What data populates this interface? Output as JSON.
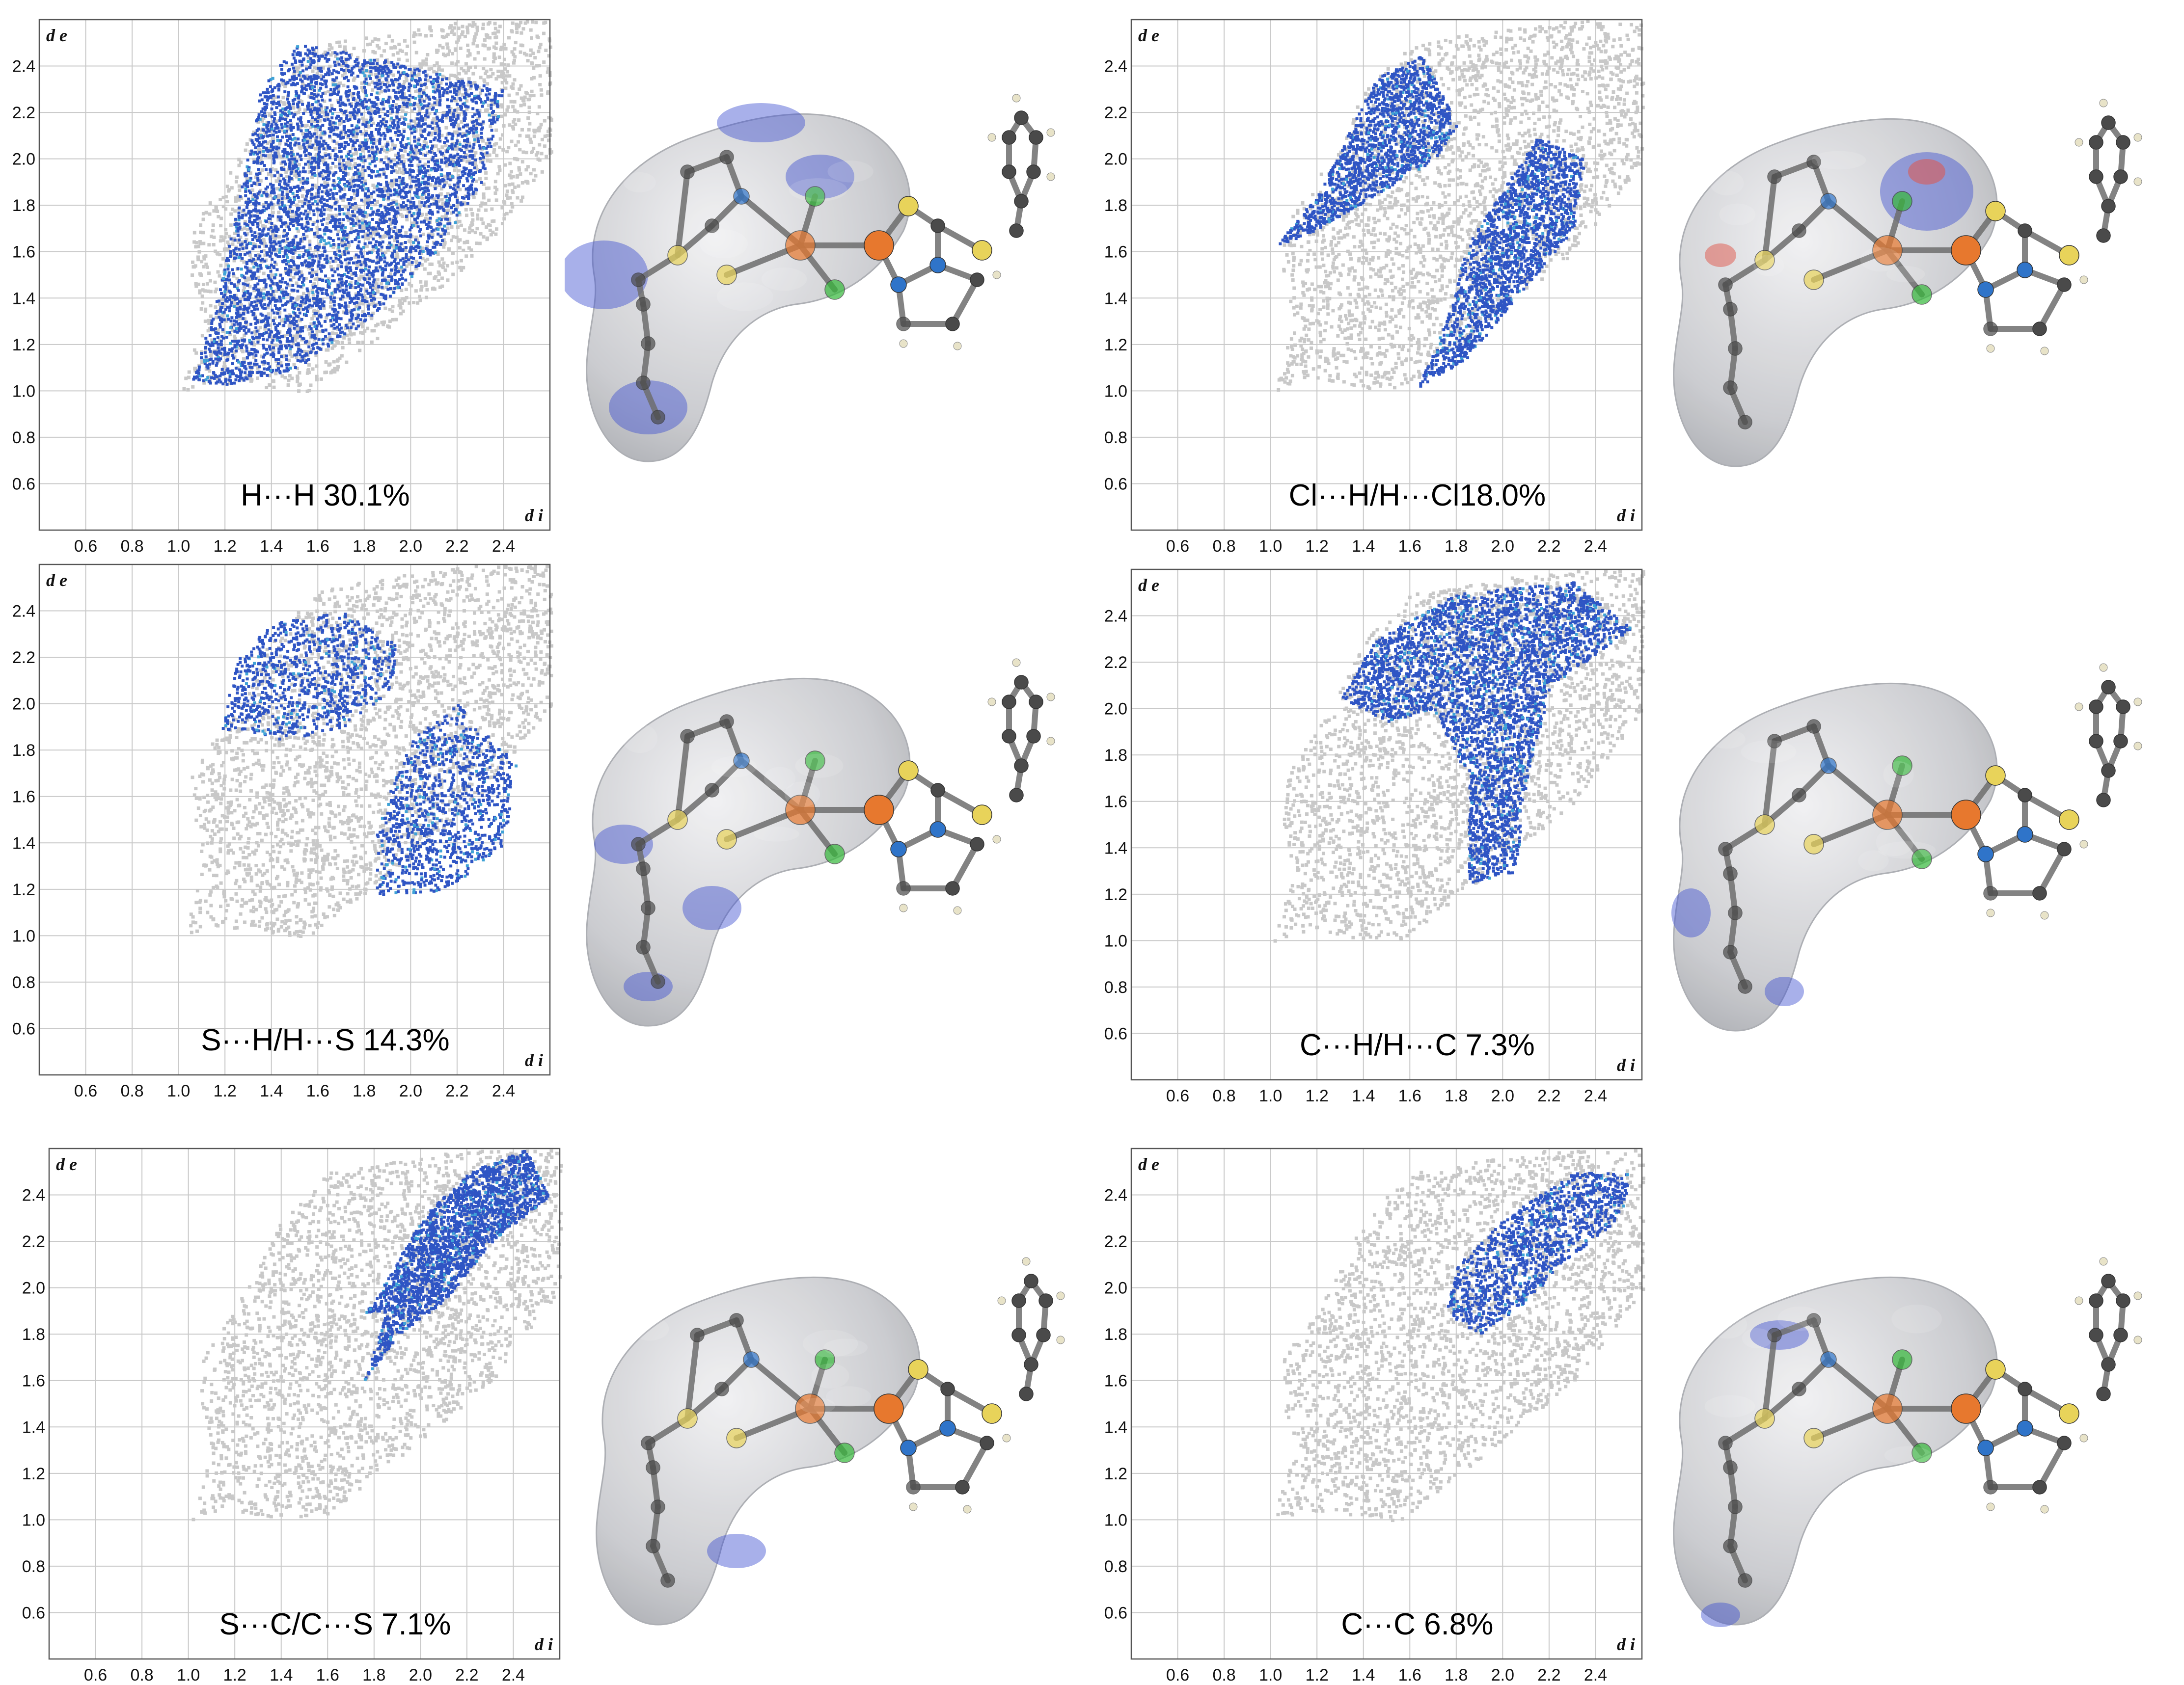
{
  "figure": {
    "mol_colors": {
      "surface": "#c9cace",
      "surface_edge": "#a9abb0",
      "highlight": "#3e4fd0",
      "carbon": "#4a4a4a",
      "hydrogen": "#e8e3c8",
      "nitrogen": "#2f74c9",
      "sulfur": "#e8d35a",
      "chlorine": "#35b83a",
      "copper": "#e7782e",
      "red_spot": "#e0554a"
    }
  },
  "chart_data": [
    {
      "type": "scatter",
      "label": "H···H 30.1%",
      "contact": "H···H",
      "percent": 30.1,
      "xlabel": "d i",
      "ylabel": "d e",
      "xlim": [
        0.4,
        2.6
      ],
      "ylim": [
        0.4,
        2.6
      ],
      "xticks": [
        0.6,
        0.8,
        1.0,
        1.2,
        1.4,
        1.6,
        1.8,
        2.0,
        2.2,
        2.4
      ],
      "yticks": [
        0.6,
        0.8,
        1.0,
        1.2,
        1.4,
        1.6,
        1.8,
        2.0,
        2.2,
        2.4
      ],
      "grid": true,
      "colors": {
        "background_points": "#c8c8c8",
        "contact_points": "#2f55c4",
        "contact_light": "#3fa2d6"
      },
      "contact_region": [
        [
          1.05,
          1.05
        ],
        [
          1.15,
          1.35
        ],
        [
          1.25,
          1.8
        ],
        [
          1.35,
          2.3
        ],
        [
          1.5,
          2.5
        ],
        [
          1.8,
          2.45
        ],
        [
          2.2,
          2.35
        ],
        [
          2.4,
          2.3
        ],
        [
          2.3,
          1.9
        ],
        [
          2.1,
          1.6
        ],
        [
          1.8,
          1.3
        ],
        [
          1.5,
          1.1
        ],
        [
          1.2,
          1.03
        ]
      ],
      "contact_region_2": []
    },
    {
      "type": "scatter",
      "label": "Cl···H/H···Cl18.0%",
      "contact": "Cl···H/H···Cl",
      "percent": 18.0,
      "xlabel": "d i",
      "ylabel": "d e",
      "xlim": [
        0.4,
        2.6
      ],
      "ylim": [
        0.4,
        2.6
      ],
      "xticks": [
        0.6,
        0.8,
        1.0,
        1.2,
        1.4,
        1.6,
        1.8,
        2.0,
        2.2,
        2.4
      ],
      "yticks": [
        0.6,
        0.8,
        1.0,
        1.2,
        1.4,
        1.6,
        1.8,
        2.0,
        2.2,
        2.4
      ],
      "grid": true,
      "colors": {
        "background_points": "#c8c8c8",
        "contact_points": "#2f55c4",
        "contact_light": "#3fa2d6"
      },
      "contact_region": [
        [
          1.02,
          1.63
        ],
        [
          1.2,
          1.85
        ],
        [
          1.45,
          2.35
        ],
        [
          1.65,
          2.45
        ],
        [
          1.8,
          2.15
        ],
        [
          1.7,
          2.0
        ],
        [
          1.45,
          1.85
        ],
        [
          1.2,
          1.7
        ]
      ],
      "contact_region_2": [
        [
          1.63,
          1.02
        ],
        [
          1.75,
          1.3
        ],
        [
          1.85,
          1.65
        ],
        [
          2.05,
          1.95
        ],
        [
          2.15,
          2.1
        ],
        [
          2.35,
          2.0
        ],
        [
          2.3,
          1.7
        ],
        [
          2.05,
          1.4
        ],
        [
          1.85,
          1.15
        ]
      ]
    },
    {
      "type": "scatter",
      "label": "S···H/H···S 14.3%",
      "contact": "S···H/H···S",
      "percent": 14.3,
      "xlabel": "d i",
      "ylabel": "d e",
      "xlim": [
        0.4,
        2.6
      ],
      "ylim": [
        0.4,
        2.6
      ],
      "xticks": [
        0.6,
        0.8,
        1.0,
        1.2,
        1.4,
        1.6,
        1.8,
        2.0,
        2.2,
        2.4
      ],
      "yticks": [
        0.6,
        0.8,
        1.0,
        1.2,
        1.4,
        1.6,
        1.8,
        2.0,
        2.2,
        2.4
      ],
      "grid": true,
      "colors": {
        "background_points": "#c8c8c8",
        "contact_points": "#2f55c4",
        "contact_light": "#3fa2d6"
      },
      "contact_region": [
        [
          1.18,
          1.9
        ],
        [
          1.25,
          2.2
        ],
        [
          1.4,
          2.35
        ],
        [
          1.7,
          2.4
        ],
        [
          1.95,
          2.25
        ],
        [
          1.9,
          2.05
        ],
        [
          1.7,
          1.9
        ],
        [
          1.45,
          1.85
        ]
      ],
      "contact_region_2": [
        [
          1.85,
          1.18
        ],
        [
          1.85,
          1.5
        ],
        [
          2.0,
          1.85
        ],
        [
          2.2,
          2.0
        ],
        [
          2.45,
          1.75
        ],
        [
          2.4,
          1.4
        ],
        [
          2.15,
          1.2
        ]
      ]
    },
    {
      "type": "scatter",
      "label": "C···H/H···C 7.3%",
      "contact": "C···H/H···C",
      "percent": 7.3,
      "xlabel": "d i",
      "ylabel": "d e",
      "xlim": [
        0.4,
        2.6
      ],
      "ylim": [
        0.4,
        2.6
      ],
      "xticks": [
        0.6,
        0.8,
        1.0,
        1.2,
        1.4,
        1.6,
        1.8,
        2.0,
        2.2,
        2.4
      ],
      "yticks": [
        0.6,
        0.8,
        1.0,
        1.2,
        1.4,
        1.6,
        1.8,
        2.0,
        2.2,
        2.4
      ],
      "grid": true,
      "colors": {
        "background_points": "#c8c8c8",
        "contact_points": "#2f55c4",
        "contact_light": "#3fa2d6"
      },
      "contact_region": [
        [
          1.3,
          2.05
        ],
        [
          1.45,
          2.3
        ],
        [
          1.8,
          2.5
        ],
        [
          2.3,
          2.55
        ],
        [
          2.55,
          2.35
        ],
        [
          2.2,
          2.1
        ],
        [
          2.1,
          1.7
        ],
        [
          2.05,
          1.3
        ],
        [
          1.85,
          1.25
        ],
        [
          1.85,
          1.7
        ],
        [
          1.7,
          2.0
        ],
        [
          1.5,
          1.95
        ]
      ],
      "contact_region_2": []
    },
    {
      "type": "scatter",
      "label": "S···C/C···S 7.1%",
      "contact": "S···C/C···S",
      "percent": 7.1,
      "xlabel": "d i",
      "ylabel": "d e",
      "xlim": [
        0.4,
        2.6
      ],
      "ylim": [
        0.4,
        2.6
      ],
      "xticks": [
        0.6,
        0.8,
        1.0,
        1.2,
        1.4,
        1.6,
        1.8,
        2.0,
        2.2,
        2.4
      ],
      "yticks": [
        0.6,
        0.8,
        1.0,
        1.2,
        1.4,
        1.6,
        1.8,
        2.0,
        2.2,
        2.4
      ],
      "grid": true,
      "colors": {
        "background_points": "#c8c8c8",
        "contact_points": "#2f55c4",
        "contact_light": "#3fa2d6"
      },
      "contact_region": [
        [
          1.6,
          1.75
        ],
        [
          1.8,
          1.95
        ],
        [
          2.0,
          2.3
        ],
        [
          2.2,
          2.5
        ],
        [
          2.45,
          2.6
        ],
        [
          2.55,
          2.4
        ],
        [
          2.3,
          2.2
        ],
        [
          2.1,
          1.95
        ],
        [
          1.9,
          1.8
        ],
        [
          1.75,
          1.6
        ],
        [
          1.85,
          1.9
        ],
        [
          1.75,
          1.9
        ]
      ],
      "contact_region_2": []
    },
    {
      "type": "scatter",
      "label": "C···C 6.8%",
      "contact": "C···C",
      "percent": 6.8,
      "xlabel": "d i",
      "ylabel": "d e",
      "xlim": [
        0.4,
        2.6
      ],
      "ylim": [
        0.4,
        2.6
      ],
      "xticks": [
        0.6,
        0.8,
        1.0,
        1.2,
        1.4,
        1.6,
        1.8,
        2.0,
        2.2,
        2.4
      ],
      "yticks": [
        0.6,
        0.8,
        1.0,
        1.2,
        1.4,
        1.6,
        1.8,
        2.0,
        2.2,
        2.4
      ],
      "grid": true,
      "colors": {
        "background_points": "#c8c8c8",
        "contact_points": "#2f55c4",
        "contact_light": "#3fa2d6"
      },
      "contact_region": [
        [
          1.75,
          1.9
        ],
        [
          1.8,
          2.1
        ],
        [
          2.0,
          2.3
        ],
        [
          2.3,
          2.5
        ],
        [
          2.55,
          2.5
        ],
        [
          2.5,
          2.3
        ],
        [
          2.3,
          2.15
        ],
        [
          2.1,
          1.95
        ],
        [
          1.9,
          1.8
        ]
      ],
      "contact_region_2": []
    }
  ]
}
